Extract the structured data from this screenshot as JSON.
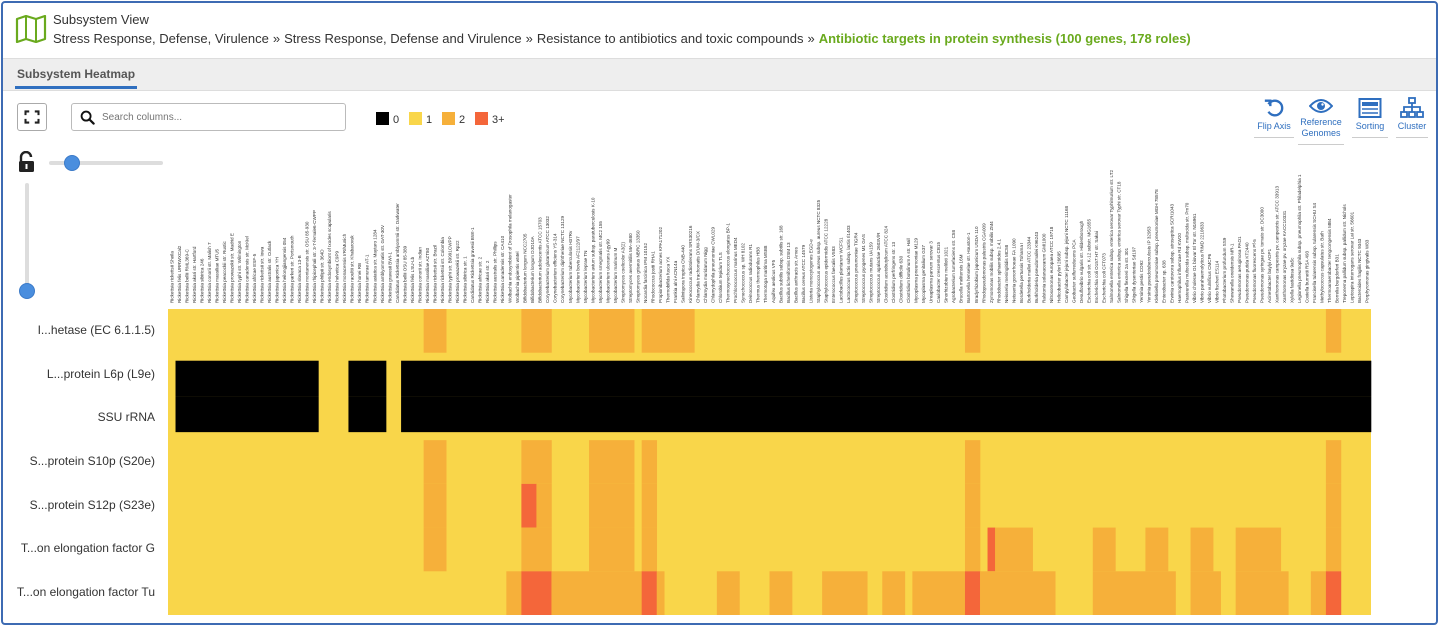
{
  "header": {
    "view_title": "Subsystem View",
    "breadcrumb": [
      "Stress Response, Defense, Virulence",
      "Stress Response, Defense and Virulence",
      "Resistance to antibiotics and toxic compounds"
    ],
    "current": "Antibiotic targets in protein synthesis (100 genes, 178 roles)",
    "separator": "»"
  },
  "tabs": [
    {
      "label": "Subsystem Heatmap",
      "active": true
    }
  ],
  "toolbar": {
    "search_placeholder": "Search columns...",
    "legend": [
      {
        "label": "0",
        "color": "#000000"
      },
      {
        "label": "1",
        "color": "#f9d64a"
      },
      {
        "label": "2",
        "color": "#f6b03a"
      },
      {
        "label": "3+",
        "color": "#f4663a"
      }
    ],
    "tools": [
      {
        "icon": "flip-axis-icon",
        "label": "Flip Axis"
      },
      {
        "icon": "eye-icon",
        "label": "Reference Genomes"
      },
      {
        "icon": "sorting-icon",
        "label": "Sorting"
      },
      {
        "icon": "cluster-icon",
        "label": "Cluster"
      }
    ]
  },
  "colors": {
    "accent": "#2f6fbf",
    "breadcrumb_current": "#6aaa1e",
    "c0": "#000000",
    "c1": "#f9d64a",
    "c2": "#f6b03a",
    "c3": "#f4663a"
  },
  "heatmap": {
    "rows": [
      "I...hetase (EC 6.1.1.5)",
      "L...protein L6p (L9e)",
      "SSU rRNA",
      "S...protein S10p (S20e)",
      "S...protein S12p (S23e)",
      "T...on elongation factor G",
      "T...on elongation factor Tu"
    ],
    "columns": [
      "Rickettsia rickettsii Sheila",
      "Rickettsia felis URRWXCal2",
      "Rickettsia bellii RML369-C",
      "Rickettsia akari str. Hartford",
      "Rickettsia sibirica 246",
      "Rickettsia conorii str. Malish 7",
      "Rickettsia massiliae MTU5",
      "Rickettsia peacockii str. Rustic",
      "Rickettsia prowazekii str. Madrid E",
      "Rickettsia typhi str. Wilmington",
      "Rickettsia canadensis str. McKiel",
      "Rickettsia africae ESF-5",
      "Rickettsia rickettsii str. Iowa",
      "Rickettsia australis str. Cutlack",
      "Rickettsia japonica YH",
      "Rickettsia heilongjiangensis 054",
      "Rickettsia parkeri str. Portsmouth",
      "Rickettsia slovaca 13-B",
      "Rickettsia montanensis str. OSU 85-930",
      "Rickettsia rhipicephali str. 3-7-female6-CWPP",
      "Rickettsia philipii str. 364D",
      "Rickettsia endosymbiont of Ixodes scapularis",
      "Rickettsia helvetica C9P9",
      "Rickettsia monacensis IrR/Munich",
      "Rickettsia raoultii str. Khabarovsk",
      "Rickettsia honei RB",
      "Rickettsia tamurae AT-1",
      "Rickettsia asiatica str. Maytaro 1284",
      "Rickettsia amblyommatis str. GAT-30V",
      "Rickettsia gravesii BWI-1",
      "Candidatus Rickettsia amblyommii str. Darkwater",
      "Rickettsia bellii OSU 85-389",
      "Rickettsia felis LSU-Lb",
      "Rickettsia conorii str. Indian",
      "Rickettsia massiliae AZT80",
      "Rickettsia rickettsii str. Brazil",
      "Rickettsia rickettsii str. Colombia",
      "Rickettsia typhi str. B9991CWPP",
      "Rickettsia prowazekii str. Rp22",
      "Rickettsia sibirica str. 1",
      "Candidatus Rickettsia gravesii BWI-1",
      "Rickettsia africae str. 2",
      "Rickettsia akari str. 2",
      "Rickettsia australis str. Phillips",
      "Rickettsia canadensis str. CA410",
      "Wolbachia endosymbiont of Drosophila melanogaster",
      "Wolbachia pipientis wMel",
      "Bifidobacterium longum NCC2705",
      "Bifidobacterium longum DJO10A",
      "Bifidobacterium adolescentis ATCC 15703",
      "Corynebacterium glutamicum ATCC 13032",
      "Corynebacterium efficiens YS-314",
      "Corynebacterium diphtheriae NCTC 13129",
      "Mycobacterium tuberculosis H37Rv",
      "Mycobacterium bovis AF2122/97",
      "Mycobacterium leprae TN",
      "Mycobacterium avium subsp. paratuberculosis K-10",
      "Mycobacterium smegmatis str. MC2 155",
      "Mycobacterium ulcerans Agy99",
      "Mycobacterium marinum M",
      "Streptomyces coelicolor A3(2)",
      "Streptomyces avermitilis MA-4680",
      "Streptomyces griseus NBRC 13350",
      "Nocardia farcinica IFM 10152",
      "Rhodococcus jostii RHA1",
      "Propionibacterium acnes KPA171202",
      "Thermobifida fusca YX",
      "Frankia alni ACN14a",
      "Salinispora tropica CNB-440",
      "Kineococcus radiotolerans SRS30216",
      "Chlamydia trachomatis D/UW-3/CX",
      "Chlamydia muridarum Nigg",
      "Chlamydophila pneumoniae CWL029",
      "Chlorobium tepidum TLS",
      "Thermosynechococcus elongatus BP-1",
      "Prochlorococcus marinus MED4",
      "Synechococcus sp. WH 8102",
      "Deinococcus radiodurans R1",
      "Thermus thermophilus HB8",
      "Thermotoga maritima MSB8",
      "Aquifex aeolicus VF5",
      "Bacillus subtilis subsp. subtilis str. 168",
      "Bacillus licheniformis DSM 13",
      "Bacillus anthracis str. Ames",
      "Bacillus cereus ATCC 14579",
      "Listeria monocytogenes EGD-e",
      "Staphylococcus aureus subsp. aureus NCTC 8325",
      "Staphylococcus epidermidis ATCC 12228",
      "Enterococcus faecalis V583",
      "Lactobacillus plantarum WCFS1",
      "Lactococcus lactis subsp. lactis Il1403",
      "Streptococcus pneumoniae TIGR4",
      "Streptococcus pyogenes M1 GAS",
      "Streptococcus mutans UA159",
      "Streptococcus agalactiae 2603V/R",
      "Clostridium acetobutylicum ATCC 824",
      "Clostridium perfringens str. 13",
      "Clostridium difficile 630",
      "Clostridium botulinum A str. Hall",
      "Mycoplasma pneumoniae M129",
      "Mycoplasma genitalium G37",
      "Ureaplasma parvum serovar 3",
      "Caulobacter crescentus CB15",
      "Sinorhizobium meliloti 1021",
      "Agrobacterium tumefaciens str. C58",
      "Brucella melitensis 16M",
      "Bartonella henselae str. Houston-1",
      "Bradyrhizobium japonicum USDA 110",
      "Rhodopseudomonas palustris CGA009",
      "Zymomonas mobilis subsp. mobilis ZM4",
      "Rhodobacter sphaeroides 2.4.1",
      "Neisseria meningitidis MC58",
      "Neisseria gonorrhoeae FA 1090",
      "Bordetella pertussis Tohama I",
      "Burkholderia mallei ATCC 23344",
      "Burkholderia pseudomallei K96243",
      "Ralstonia solanacearum GMI1000",
      "Nitrosomonas europaea ATCC 19718",
      "Helicobacter pylori 26695",
      "Campylobacter jejuni subsp. jejuni NCTC 11168",
      "Geobacter sulfurreducens PCA",
      "Desulfovibrio vulgaris str. Hildenborough",
      "Escherichia coli str. K-12 substr. MG1655",
      "Escherichia coli O157:H7 str. Sakai",
      "Escherichia coli CFT073",
      "Salmonella enterica subsp. enterica serovar Typhimurium str. LT2",
      "Salmonella enterica subsp. enterica serovar Typhi str. CT18",
      "Shigella flexneri 2a str. 301",
      "Shigella dysenteriae Sd197",
      "Yersinia pestis CO92",
      "Yersinia pseudotuberculosis IP 32953",
      "Klebsiella pneumoniae subsp. pneumoniae MGH 78578",
      "Enterobacter sp. 638",
      "Erwinia carotovora subsp. atroseptica SCRI1043",
      "Haemophilus influenzae Rd KW20",
      "Pasteurella multocida subsp. multocida str. Pm70",
      "Vibrio cholerae O1 biovar El Tor str. N16961",
      "Vibrio parahaemolyticus RIMD 2210633",
      "Vibrio vulnificus CMCP6",
      "Vibrio fischeri ES114",
      "Photobacterium profundum SS9",
      "Shewanella oneidensis MR-1",
      "Pseudomonas aeruginosa PAO1",
      "Pseudomonas putida KT2440",
      "Pseudomonas fluorescens Pf-5",
      "Pseudomonas syringae pv. tomato str. DC3000",
      "Acinetobacter baylyi ADP1",
      "Xanthomonas campestris pv. campestris str. ATCC 33913",
      "Xanthomonas oryzae pv. oryzae KACC10331",
      "Xylella fastidiosa 9a5c",
      "Legionella pneumophila subsp. pneumophila str. Philadelphia 1",
      "Coxiella burnetii RSA 493",
      "Francisella tularensis subsp. tularensis SCHU S4",
      "Methylococcus capsulatus str. Bath",
      "Thermoanaerobacter tengcongensis MB4",
      "Borrelia burgdorferi B31",
      "Treponema pallidum subsp. pallidum str. Nichols",
      "Leptospira interrogans serovar Lai str. 56601",
      "Bacteroides fragilis NCTC 9343",
      "Porphyromonas gingivalis W83"
    ]
  }
}
